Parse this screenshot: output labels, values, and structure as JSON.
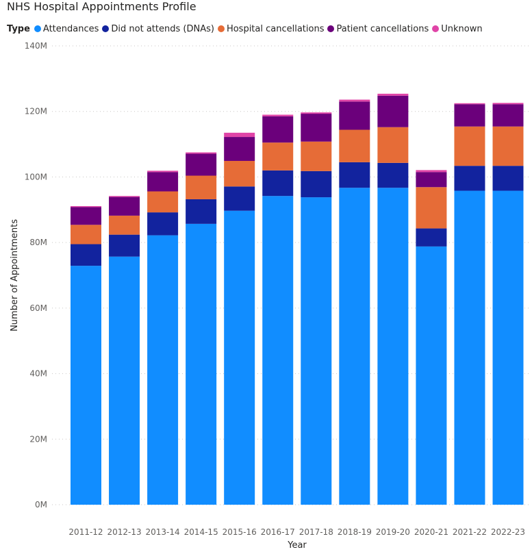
{
  "chart_data": {
    "type": "bar",
    "stacked": true,
    "title": "NHS Hospital Appointments Profile",
    "legend_title": "Type",
    "xlabel": "Year",
    "ylabel": "Number of Appointments",
    "ylim": [
      0,
      140000000
    ],
    "yticks": [
      {
        "value": 0,
        "label": "0M"
      },
      {
        "value": 20000000,
        "label": "20M"
      },
      {
        "value": 40000000,
        "label": "40M"
      },
      {
        "value": 60000000,
        "label": "60M"
      },
      {
        "value": 80000000,
        "label": "80M"
      },
      {
        "value": 100000000,
        "label": "100M"
      },
      {
        "value": 120000000,
        "label": "120M"
      },
      {
        "value": 140000000,
        "label": "140M"
      }
    ],
    "categories": [
      "2011-12",
      "2012-13",
      "2013-14",
      "2014-15",
      "2015-16",
      "2016-17",
      "2017-18",
      "2018-19",
      "2019-20",
      "2020-21",
      "2021-22",
      "2022-23"
    ],
    "series": [
      {
        "name": "Attendances",
        "color": "#118dff",
        "values": [
          72900000,
          75700000,
          82200000,
          85700000,
          89700000,
          94200000,
          93800000,
          96700000,
          96700000,
          78800000,
          95800000,
          95800000
        ]
      },
      {
        "name": "Did not attends (DNAs)",
        "color": "#12239e",
        "values": [
          6600000,
          6700000,
          7000000,
          7500000,
          7400000,
          7800000,
          8000000,
          7800000,
          7600000,
          5500000,
          7600000,
          7600000
        ]
      },
      {
        "name": "Hospital cancellations",
        "color": "#e66c37",
        "values": [
          5900000,
          5800000,
          6400000,
          7200000,
          7800000,
          8500000,
          9000000,
          9900000,
          10900000,
          12600000,
          12000000,
          12000000
        ]
      },
      {
        "name": "Patient cancellations",
        "color": "#6b007b",
        "values": [
          5400000,
          5700000,
          5900000,
          6700000,
          7300000,
          8000000,
          8500000,
          8600000,
          9600000,
          4600000,
          6800000,
          6800000
        ]
      },
      {
        "name": "Unknown",
        "color": "#e044a7",
        "values": [
          300000,
          300000,
          400000,
          400000,
          1300000,
          500000,
          400000,
          600000,
          600000,
          600000,
          300000,
          400000
        ]
      }
    ]
  }
}
